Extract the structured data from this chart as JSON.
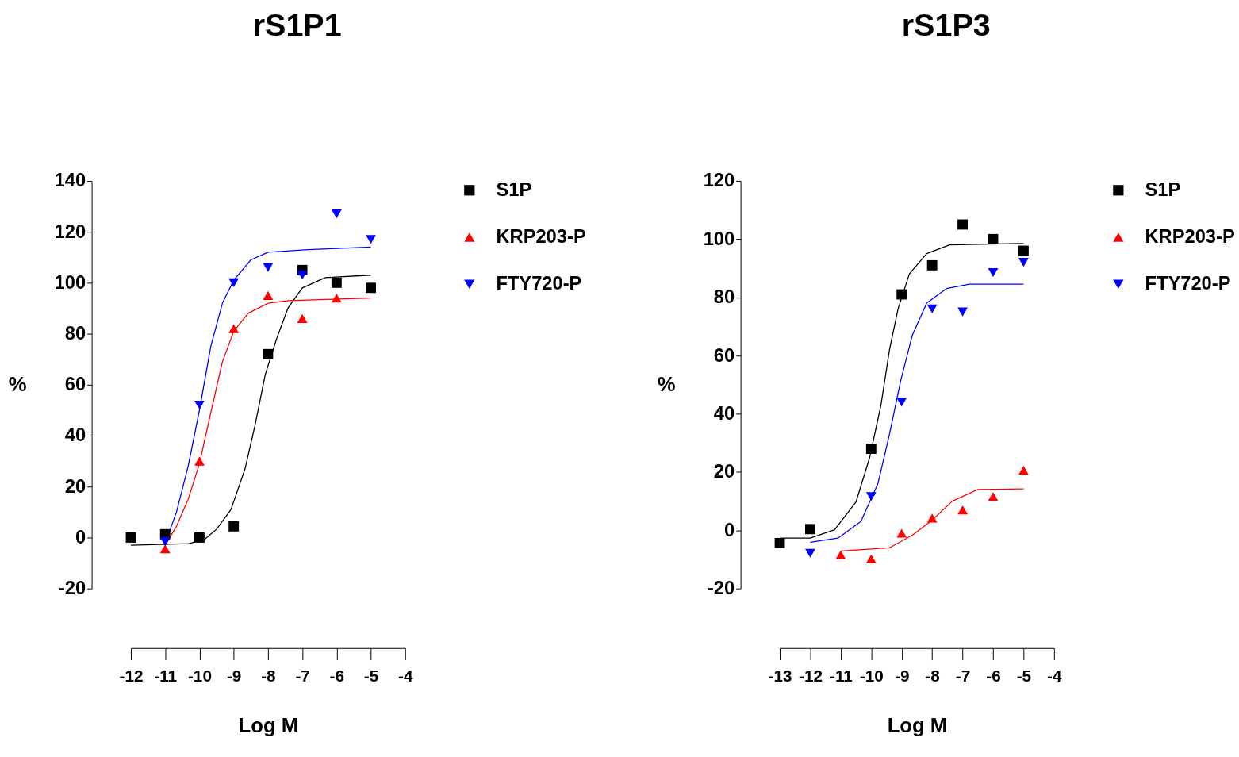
{
  "chart_data": [
    {
      "type": "scatter",
      "title": "rS1P1",
      "xlabel": "Log M",
      "ylabel": "%",
      "xlim": [
        -12,
        -4
      ],
      "xticks": [
        -12,
        -11,
        -10,
        -9,
        -8,
        -7,
        -6,
        -5,
        -4
      ],
      "ylim": [
        -20,
        140
      ],
      "yticks": [
        -20,
        0,
        20,
        40,
        60,
        80,
        100,
        120,
        140
      ],
      "grid": false,
      "legend": "right",
      "series": [
        {
          "name": "S1P",
          "marker": "square",
          "color": "#000000",
          "x": [
            -12,
            -11,
            -10,
            -9,
            -8,
            -7,
            -6,
            -5
          ],
          "values": [
            0,
            1.3,
            0,
            4.4,
            72,
            105,
            100,
            98
          ]
        },
        {
          "name": "KRP203-P",
          "marker": "triangle",
          "color": "#ff0000",
          "x": [
            -11,
            -10,
            -9,
            -8,
            -7,
            -6
          ],
          "values": [
            -4.4,
            30,
            82,
            95,
            86,
            94
          ]
        },
        {
          "name": "FTY720-P",
          "marker": "triangle-down",
          "color": "#0000ff",
          "x": [
            -11,
            -10,
            -9,
            -8,
            -7,
            -6,
            -5
          ],
          "values": [
            -1.6,
            52,
            100,
            106,
            103,
            127,
            117
          ]
        },
        {
          "type": "line",
          "color": "#000000",
          "x": [
            -12,
            -10.3,
            -9.83,
            -9.5,
            -9.08,
            -8.67,
            -8.38,
            -8.08,
            -7.75,
            -7.42,
            -7,
            -6.33,
            -5
          ],
          "values": [
            -3,
            -2.4,
            -0.5,
            3.3,
            11,
            27,
            44,
            64,
            78,
            90,
            98,
            102,
            103
          ]
        },
        {
          "type": "line",
          "color": "#ff0000",
          "x": [
            -11,
            -10.67,
            -10.33,
            -10,
            -9.67,
            -9.33,
            -9,
            -8.58,
            -8,
            -7.42,
            -5
          ],
          "values": [
            -3,
            4.4,
            15,
            29,
            49,
            69,
            81,
            88,
            92,
            93,
            94
          ]
        },
        {
          "type": "line",
          "color": "#0000ff",
          "x": [
            -11,
            -10.67,
            -10.33,
            -10,
            -9.67,
            -9.33,
            -9,
            -8.5,
            -8,
            -6.83,
            -5
          ],
          "values": [
            -2.2,
            10,
            28,
            50,
            75,
            92,
            101,
            109,
            112,
            113,
            114
          ]
        }
      ]
    },
    {
      "type": "scatter",
      "title": "rS1P3",
      "xlabel": "Log M",
      "ylabel": "%",
      "xlim": [
        -13,
        -4
      ],
      "xticks": [
        -13,
        -12,
        -11,
        -10,
        -9,
        -8,
        -7,
        -6,
        -5,
        -4
      ],
      "ylim": [
        -20,
        120
      ],
      "yticks": [
        -20,
        0,
        20,
        40,
        60,
        80,
        100,
        120
      ],
      "grid": false,
      "legend": "right",
      "series": [
        {
          "name": "S1P",
          "marker": "square",
          "color": "#000000",
          "x": [
            -13,
            -12,
            -10,
            -9,
            -8,
            -7,
            -6,
            -5
          ],
          "values": [
            -4.4,
            0.4,
            28,
            81,
            91,
            105,
            100,
            96
          ]
        },
        {
          "name": "KRP203-P",
          "marker": "triangle",
          "color": "#ff0000",
          "x": [
            -11,
            -10,
            -9,
            -8,
            -7,
            -6,
            -5
          ],
          "values": [
            -8.4,
            -9.8,
            -1,
            4.2,
            7,
            11.6,
            20.6
          ]
        },
        {
          "name": "FTY720-P",
          "marker": "triangle-down",
          "color": "#0000ff",
          "x": [
            -12,
            -10,
            -9,
            -8,
            -7,
            -6,
            -5
          ],
          "values": [
            -7.9,
            11.6,
            44,
            76,
            75,
            88.5,
            92
          ]
        },
        {
          "type": "line",
          "color": "#000000",
          "x": [
            -13,
            -12,
            -11.2,
            -10.5,
            -10.05,
            -9.68,
            -9.4,
            -9.12,
            -8.75,
            -8.18,
            -7.43,
            -5
          ],
          "values": [
            -2.7,
            -2.7,
            0.2,
            9.7,
            25,
            43,
            62,
            76,
            88,
            95,
            98,
            98.5
          ]
        },
        {
          "type": "line",
          "color": "#ff0000",
          "x": [
            -11,
            -9.4,
            -8.65,
            -8,
            -7.34,
            -6.5,
            -5
          ],
          "values": [
            -7.1,
            -6,
            -1.7,
            3.5,
            10,
            14,
            14.2
          ]
        },
        {
          "type": "line",
          "color": "#0000ff",
          "x": [
            -12,
            -11.09,
            -10.34,
            -9.78,
            -9.4,
            -9.03,
            -8.65,
            -8.18,
            -7.53,
            -6.78,
            -5
          ],
          "values": [
            -4.1,
            -2.7,
            3,
            16,
            33,
            51.5,
            67,
            78,
            83,
            84.5,
            84.5
          ]
        }
      ]
    }
  ]
}
